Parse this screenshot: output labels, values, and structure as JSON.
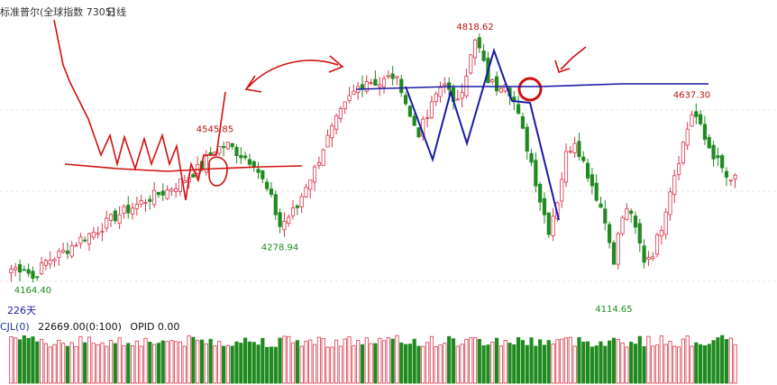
{
  "header": {
    "title": "标准普尔(全球指数 7305)",
    "period": "日线"
  },
  "colors": {
    "up": "#d9364a",
    "down": "#1f8a1f",
    "annotation_red": "#d11010",
    "annotation_blue": "#1a1aa8",
    "grid": "#e4e4e4"
  },
  "chart_data": {
    "type": "candlestick",
    "title": "标准普尔(全球指数 7305)",
    "period": "日线",
    "ylim": [
      4090,
      4850
    ],
    "grid": true,
    "days_label": "226天",
    "price_labels": [
      {
        "label": "4164.40",
        "value": 4164.4,
        "kind": "low",
        "index": 5,
        "color": "green"
      },
      {
        "label": "4545.85",
        "value": 4545.85,
        "kind": "high",
        "index": 47,
        "color": "red"
      },
      {
        "label": "4278.94",
        "value": 4278.94,
        "kind": "low",
        "index": 62,
        "color": "green"
      },
      {
        "label": "4818.62",
        "value": 4818.62,
        "kind": "high",
        "index": 107,
        "color": "red"
      },
      {
        "label": "4114.65",
        "value": 4114.65,
        "kind": "low",
        "index": 139,
        "color": "green"
      },
      {
        "label": "4637.30",
        "value": 4637.3,
        "kind": "high",
        "index": 157,
        "color": "red"
      }
    ],
    "close_path": [
      [
        0,
        4195
      ],
      [
        3,
        4200
      ],
      [
        5,
        4170
      ],
      [
        8,
        4215
      ],
      [
        12,
        4240
      ],
      [
        16,
        4275
      ],
      [
        20,
        4300
      ],
      [
        24,
        4335
      ],
      [
        28,
        4360
      ],
      [
        32,
        4385
      ],
      [
        36,
        4405
      ],
      [
        40,
        4435
      ],
      [
        44,
        4470
      ],
      [
        47,
        4515
      ],
      [
        50,
        4525
      ],
      [
        53,
        4500
      ],
      [
        56,
        4480
      ],
      [
        58,
        4430
      ],
      [
        60,
        4380
      ],
      [
        62,
        4310
      ],
      [
        64,
        4335
      ],
      [
        66,
        4360
      ],
      [
        68,
        4420
      ],
      [
        70,
        4460
      ],
      [
        72,
        4520
      ],
      [
        75,
        4590
      ],
      [
        78,
        4650
      ],
      [
        80,
        4680
      ],
      [
        82,
        4700
      ],
      [
        85,
        4690
      ],
      [
        88,
        4710
      ],
      [
        90,
        4680
      ],
      [
        92,
        4600
      ],
      [
        94,
        4560
      ],
      [
        96,
        4600
      ],
      [
        98,
        4660
      ],
      [
        100,
        4700
      ],
      [
        102,
        4630
      ],
      [
        104,
        4680
      ],
      [
        106,
        4760
      ],
      [
        107,
        4800
      ],
      [
        108,
        4780
      ],
      [
        110,
        4700
      ],
      [
        112,
        4680
      ],
      [
        114,
        4700
      ],
      [
        116,
        4640
      ],
      [
        118,
        4560
      ],
      [
        120,
        4480
      ],
      [
        122,
        4380
      ],
      [
        124,
        4300
      ],
      [
        126,
        4380
      ],
      [
        128,
        4500
      ],
      [
        130,
        4540
      ],
      [
        132,
        4480
      ],
      [
        134,
        4420
      ],
      [
        136,
        4360
      ],
      [
        138,
        4280
      ],
      [
        139,
        4200
      ],
      [
        140,
        4290
      ],
      [
        142,
        4360
      ],
      [
        144,
        4300
      ],
      [
        146,
        4220
      ],
      [
        148,
        4240
      ],
      [
        150,
        4310
      ],
      [
        152,
        4410
      ],
      [
        154,
        4490
      ],
      [
        156,
        4570
      ],
      [
        157,
        4610
      ],
      [
        158,
        4600
      ],
      [
        160,
        4540
      ],
      [
        162,
        4500
      ],
      [
        164,
        4460
      ],
      [
        166,
        4420
      ],
      [
        167,
        4440
      ]
    ],
    "volume": {
      "label": "CJL(0)",
      "value_text": "22669.00(0:100)",
      "opid_text": "OPID 0.00"
    }
  }
}
